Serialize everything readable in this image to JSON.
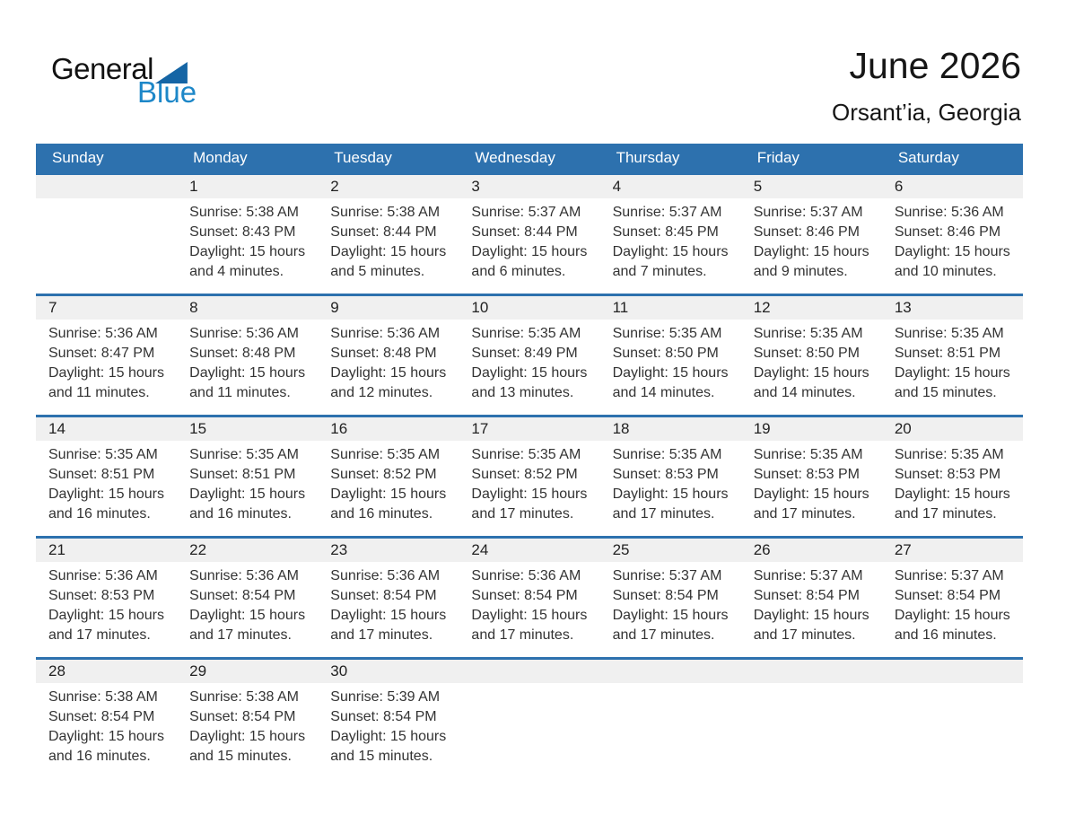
{
  "logo": {
    "general": "General",
    "blue": "Blue"
  },
  "header": {
    "title": "June 2026",
    "subtitle": "Orsant’ia, Georgia"
  },
  "weekdays": [
    "Sunday",
    "Monday",
    "Tuesday",
    "Wednesday",
    "Thursday",
    "Friday",
    "Saturday"
  ],
  "colors": {
    "accent_blue": "#2d71ae",
    "logo_triangle_blue": "#1565a5",
    "logo_text_blue": "#1d87c8",
    "day_band_gray": "#f0f0f0"
  },
  "weeks": [
    [
      {
        "day": "",
        "sunrise": "",
        "sunset": "",
        "daylight": ""
      },
      {
        "day": "1",
        "sunrise": "Sunrise: 5:38 AM",
        "sunset": "Sunset: 8:43 PM",
        "daylight": "Daylight: 15 hours and 4 minutes."
      },
      {
        "day": "2",
        "sunrise": "Sunrise: 5:38 AM",
        "sunset": "Sunset: 8:44 PM",
        "daylight": "Daylight: 15 hours and 5 minutes."
      },
      {
        "day": "3",
        "sunrise": "Sunrise: 5:37 AM",
        "sunset": "Sunset: 8:44 PM",
        "daylight": "Daylight: 15 hours and 6 minutes."
      },
      {
        "day": "4",
        "sunrise": "Sunrise: 5:37 AM",
        "sunset": "Sunset: 8:45 PM",
        "daylight": "Daylight: 15 hours and 7 minutes."
      },
      {
        "day": "5",
        "sunrise": "Sunrise: 5:37 AM",
        "sunset": "Sunset: 8:46 PM",
        "daylight": "Daylight: 15 hours and 9 minutes."
      },
      {
        "day": "6",
        "sunrise": "Sunrise: 5:36 AM",
        "sunset": "Sunset: 8:46 PM",
        "daylight": "Daylight: 15 hours and 10 minutes."
      }
    ],
    [
      {
        "day": "7",
        "sunrise": "Sunrise: 5:36 AM",
        "sunset": "Sunset: 8:47 PM",
        "daylight": "Daylight: 15 hours and 11 minutes."
      },
      {
        "day": "8",
        "sunrise": "Sunrise: 5:36 AM",
        "sunset": "Sunset: 8:48 PM",
        "daylight": "Daylight: 15 hours and 11 minutes."
      },
      {
        "day": "9",
        "sunrise": "Sunrise: 5:36 AM",
        "sunset": "Sunset: 8:48 PM",
        "daylight": "Daylight: 15 hours and 12 minutes."
      },
      {
        "day": "10",
        "sunrise": "Sunrise: 5:35 AM",
        "sunset": "Sunset: 8:49 PM",
        "daylight": "Daylight: 15 hours and 13 minutes."
      },
      {
        "day": "11",
        "sunrise": "Sunrise: 5:35 AM",
        "sunset": "Sunset: 8:50 PM",
        "daylight": "Daylight: 15 hours and 14 minutes."
      },
      {
        "day": "12",
        "sunrise": "Sunrise: 5:35 AM",
        "sunset": "Sunset: 8:50 PM",
        "daylight": "Daylight: 15 hours and 14 minutes."
      },
      {
        "day": "13",
        "sunrise": "Sunrise: 5:35 AM",
        "sunset": "Sunset: 8:51 PM",
        "daylight": "Daylight: 15 hours and 15 minutes."
      }
    ],
    [
      {
        "day": "14",
        "sunrise": "Sunrise: 5:35 AM",
        "sunset": "Sunset: 8:51 PM",
        "daylight": "Daylight: 15 hours and 16 minutes."
      },
      {
        "day": "15",
        "sunrise": "Sunrise: 5:35 AM",
        "sunset": "Sunset: 8:51 PM",
        "daylight": "Daylight: 15 hours and 16 minutes."
      },
      {
        "day": "16",
        "sunrise": "Sunrise: 5:35 AM",
        "sunset": "Sunset: 8:52 PM",
        "daylight": "Daylight: 15 hours and 16 minutes."
      },
      {
        "day": "17",
        "sunrise": "Sunrise: 5:35 AM",
        "sunset": "Sunset: 8:52 PM",
        "daylight": "Daylight: 15 hours and 17 minutes."
      },
      {
        "day": "18",
        "sunrise": "Sunrise: 5:35 AM",
        "sunset": "Sunset: 8:53 PM",
        "daylight": "Daylight: 15 hours and 17 minutes."
      },
      {
        "day": "19",
        "sunrise": "Sunrise: 5:35 AM",
        "sunset": "Sunset: 8:53 PM",
        "daylight": "Daylight: 15 hours and 17 minutes."
      },
      {
        "day": "20",
        "sunrise": "Sunrise: 5:35 AM",
        "sunset": "Sunset: 8:53 PM",
        "daylight": "Daylight: 15 hours and 17 minutes."
      }
    ],
    [
      {
        "day": "21",
        "sunrise": "Sunrise: 5:36 AM",
        "sunset": "Sunset: 8:53 PM",
        "daylight": "Daylight: 15 hours and 17 minutes."
      },
      {
        "day": "22",
        "sunrise": "Sunrise: 5:36 AM",
        "sunset": "Sunset: 8:54 PM",
        "daylight": "Daylight: 15 hours and 17 minutes."
      },
      {
        "day": "23",
        "sunrise": "Sunrise: 5:36 AM",
        "sunset": "Sunset: 8:54 PM",
        "daylight": "Daylight: 15 hours and 17 minutes."
      },
      {
        "day": "24",
        "sunrise": "Sunrise: 5:36 AM",
        "sunset": "Sunset: 8:54 PM",
        "daylight": "Daylight: 15 hours and 17 minutes."
      },
      {
        "day": "25",
        "sunrise": "Sunrise: 5:37 AM",
        "sunset": "Sunset: 8:54 PM",
        "daylight": "Daylight: 15 hours and 17 minutes."
      },
      {
        "day": "26",
        "sunrise": "Sunrise: 5:37 AM",
        "sunset": "Sunset: 8:54 PM",
        "daylight": "Daylight: 15 hours and 17 minutes."
      },
      {
        "day": "27",
        "sunrise": "Sunrise: 5:37 AM",
        "sunset": "Sunset: 8:54 PM",
        "daylight": "Daylight: 15 hours and 16 minutes."
      }
    ],
    [
      {
        "day": "28",
        "sunrise": "Sunrise: 5:38 AM",
        "sunset": "Sunset: 8:54 PM",
        "daylight": "Daylight: 15 hours and 16 minutes."
      },
      {
        "day": "29",
        "sunrise": "Sunrise: 5:38 AM",
        "sunset": "Sunset: 8:54 PM",
        "daylight": "Daylight: 15 hours and 15 minutes."
      },
      {
        "day": "30",
        "sunrise": "Sunrise: 5:39 AM",
        "sunset": "Sunset: 8:54 PM",
        "daylight": "Daylight: 15 hours and 15 minutes."
      },
      {
        "day": "",
        "sunrise": "",
        "sunset": "",
        "daylight": ""
      },
      {
        "day": "",
        "sunrise": "",
        "sunset": "",
        "daylight": ""
      },
      {
        "day": "",
        "sunrise": "",
        "sunset": "",
        "daylight": ""
      },
      {
        "day": "",
        "sunrise": "",
        "sunset": "",
        "daylight": ""
      }
    ]
  ]
}
